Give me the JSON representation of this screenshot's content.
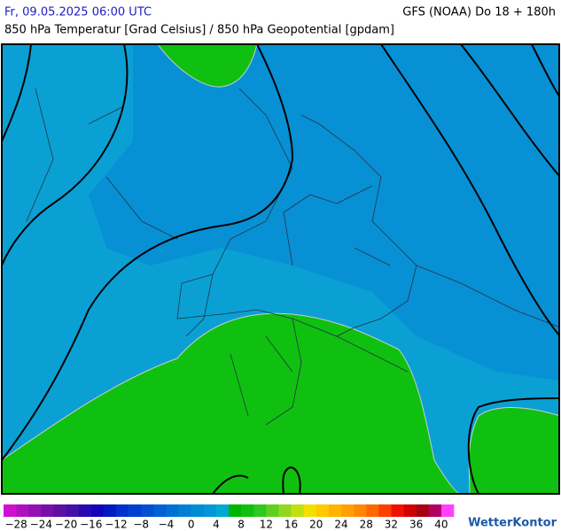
{
  "header": {
    "title_left": "Fr, 09.05.2025 06:00 UTC",
    "title_right": "GFS (NOAA) Do 18 + 180h",
    "subtitle": "850 hPa Temperatur [Grad Celsius] / 850 hPa Geopotential [gpdam]"
  },
  "colorbar": {
    "lim": [
      -30,
      42
    ],
    "colors": [
      "#d010d0",
      "#b010c0",
      "#9410b4",
      "#7810a8",
      "#5c10a4",
      "#4410a8",
      "#2c08b0",
      "#1404b8",
      "#0018c4",
      "#0030cc",
      "#0040d0",
      "#0050d4",
      "#0060d4",
      "#0070d4",
      "#0080d4",
      "#008cd4",
      "#0098d4",
      "#00a8d4",
      "#00b400",
      "#10c010",
      "#30c820",
      "#60d020",
      "#90d820",
      "#c0e010",
      "#f4e000",
      "#ffc800",
      "#ffb400",
      "#ffa000",
      "#ff8800",
      "#ff6800",
      "#ff4000",
      "#f01000",
      "#d00000",
      "#a80010",
      "#b00060",
      "#ff40ff"
    ],
    "ticks": [
      {
        "value": -28,
        "label": "−28"
      },
      {
        "value": -24,
        "label": "−24"
      },
      {
        "value": -20,
        "label": "−20"
      },
      {
        "value": -16,
        "label": "−16"
      },
      {
        "value": -12,
        "label": "−12"
      },
      {
        "value": -8,
        "label": "−8"
      },
      {
        "value": -4,
        "label": "−4"
      },
      0,
      4,
      8,
      12,
      16,
      20,
      24,
      28,
      32,
      36,
      40
    ]
  },
  "brand": "WetterKontor"
}
